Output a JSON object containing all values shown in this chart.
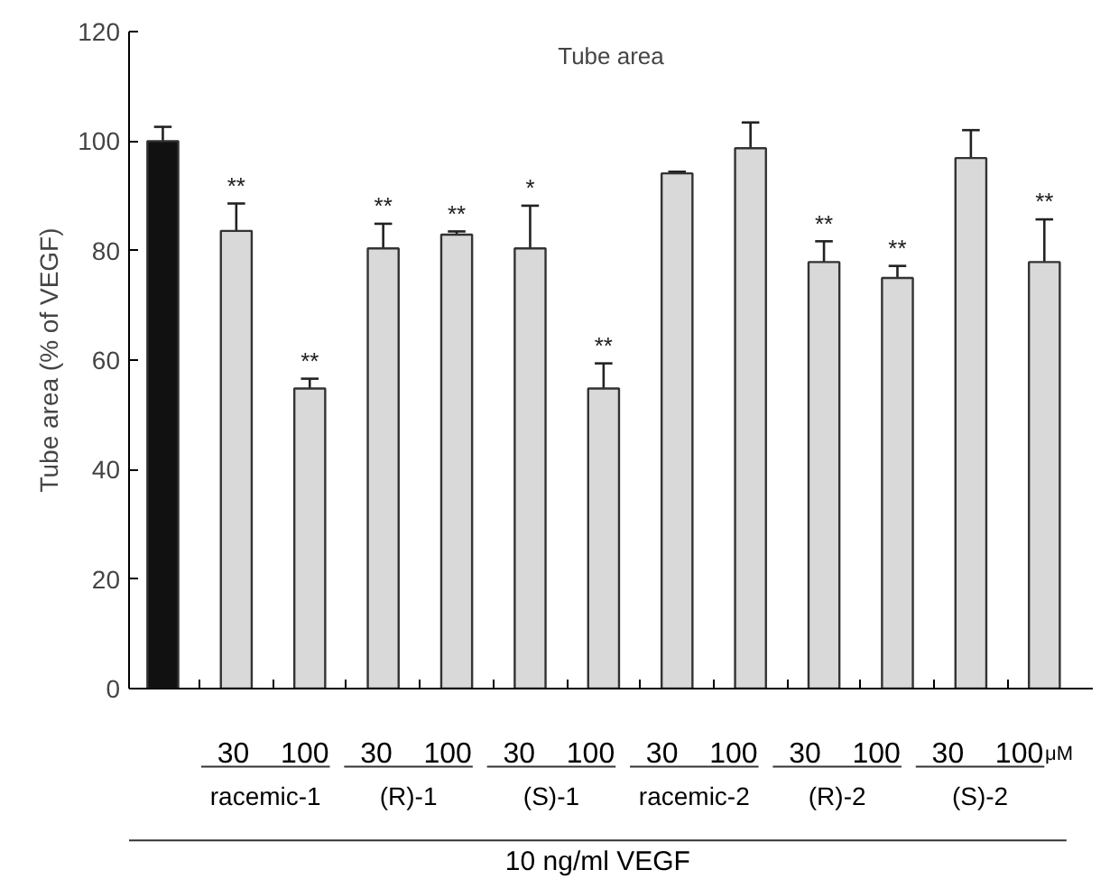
{
  "chart_data": {
    "type": "bar",
    "title": "Tube area",
    "ylabel": "Tube area (% of VEGF)",
    "categories": [
      null,
      "30",
      "100",
      "30",
      "100",
      "30",
      "100",
      "30",
      "100",
      "30",
      "100",
      "30",
      "100"
    ],
    "values": [
      100,
      83.6,
      54.8,
      80.4,
      82.9,
      80.4,
      54.8,
      94.1,
      98.7,
      77.9,
      75.0,
      96.9,
      77.9
    ],
    "errors": [
      2.6,
      5.0,
      1.8,
      4.5,
      0.6,
      7.8,
      4.6,
      0.3,
      4.7,
      3.8,
      2.2,
      5.1,
      7.8
    ],
    "colors": [
      "#111111",
      "#d9d9d9",
      "#d9d9d9",
      "#d9d9d9",
      "#d9d9d9",
      "#d9d9d9",
      "#d9d9d9",
      "#d9d9d9",
      "#d9d9d9",
      "#d9d9d9",
      "#d9d9d9",
      "#d9d9d9",
      "#d9d9d9"
    ],
    "value_labels": [
      null,
      "**",
      "**",
      "**",
      "**",
      "*",
      "**",
      null,
      null,
      "**",
      "**",
      null,
      "**"
    ],
    "ylim": [
      0,
      120
    ],
    "yticks": [
      0,
      20,
      40,
      60,
      80,
      100,
      120
    ],
    "annotations": [
      "μM",
      "racemic-1",
      "(R)-1",
      "(S)-1",
      "racemic-2",
      "(R)-2",
      "(S)-2",
      "10 ng/ml VEGF"
    ]
  }
}
